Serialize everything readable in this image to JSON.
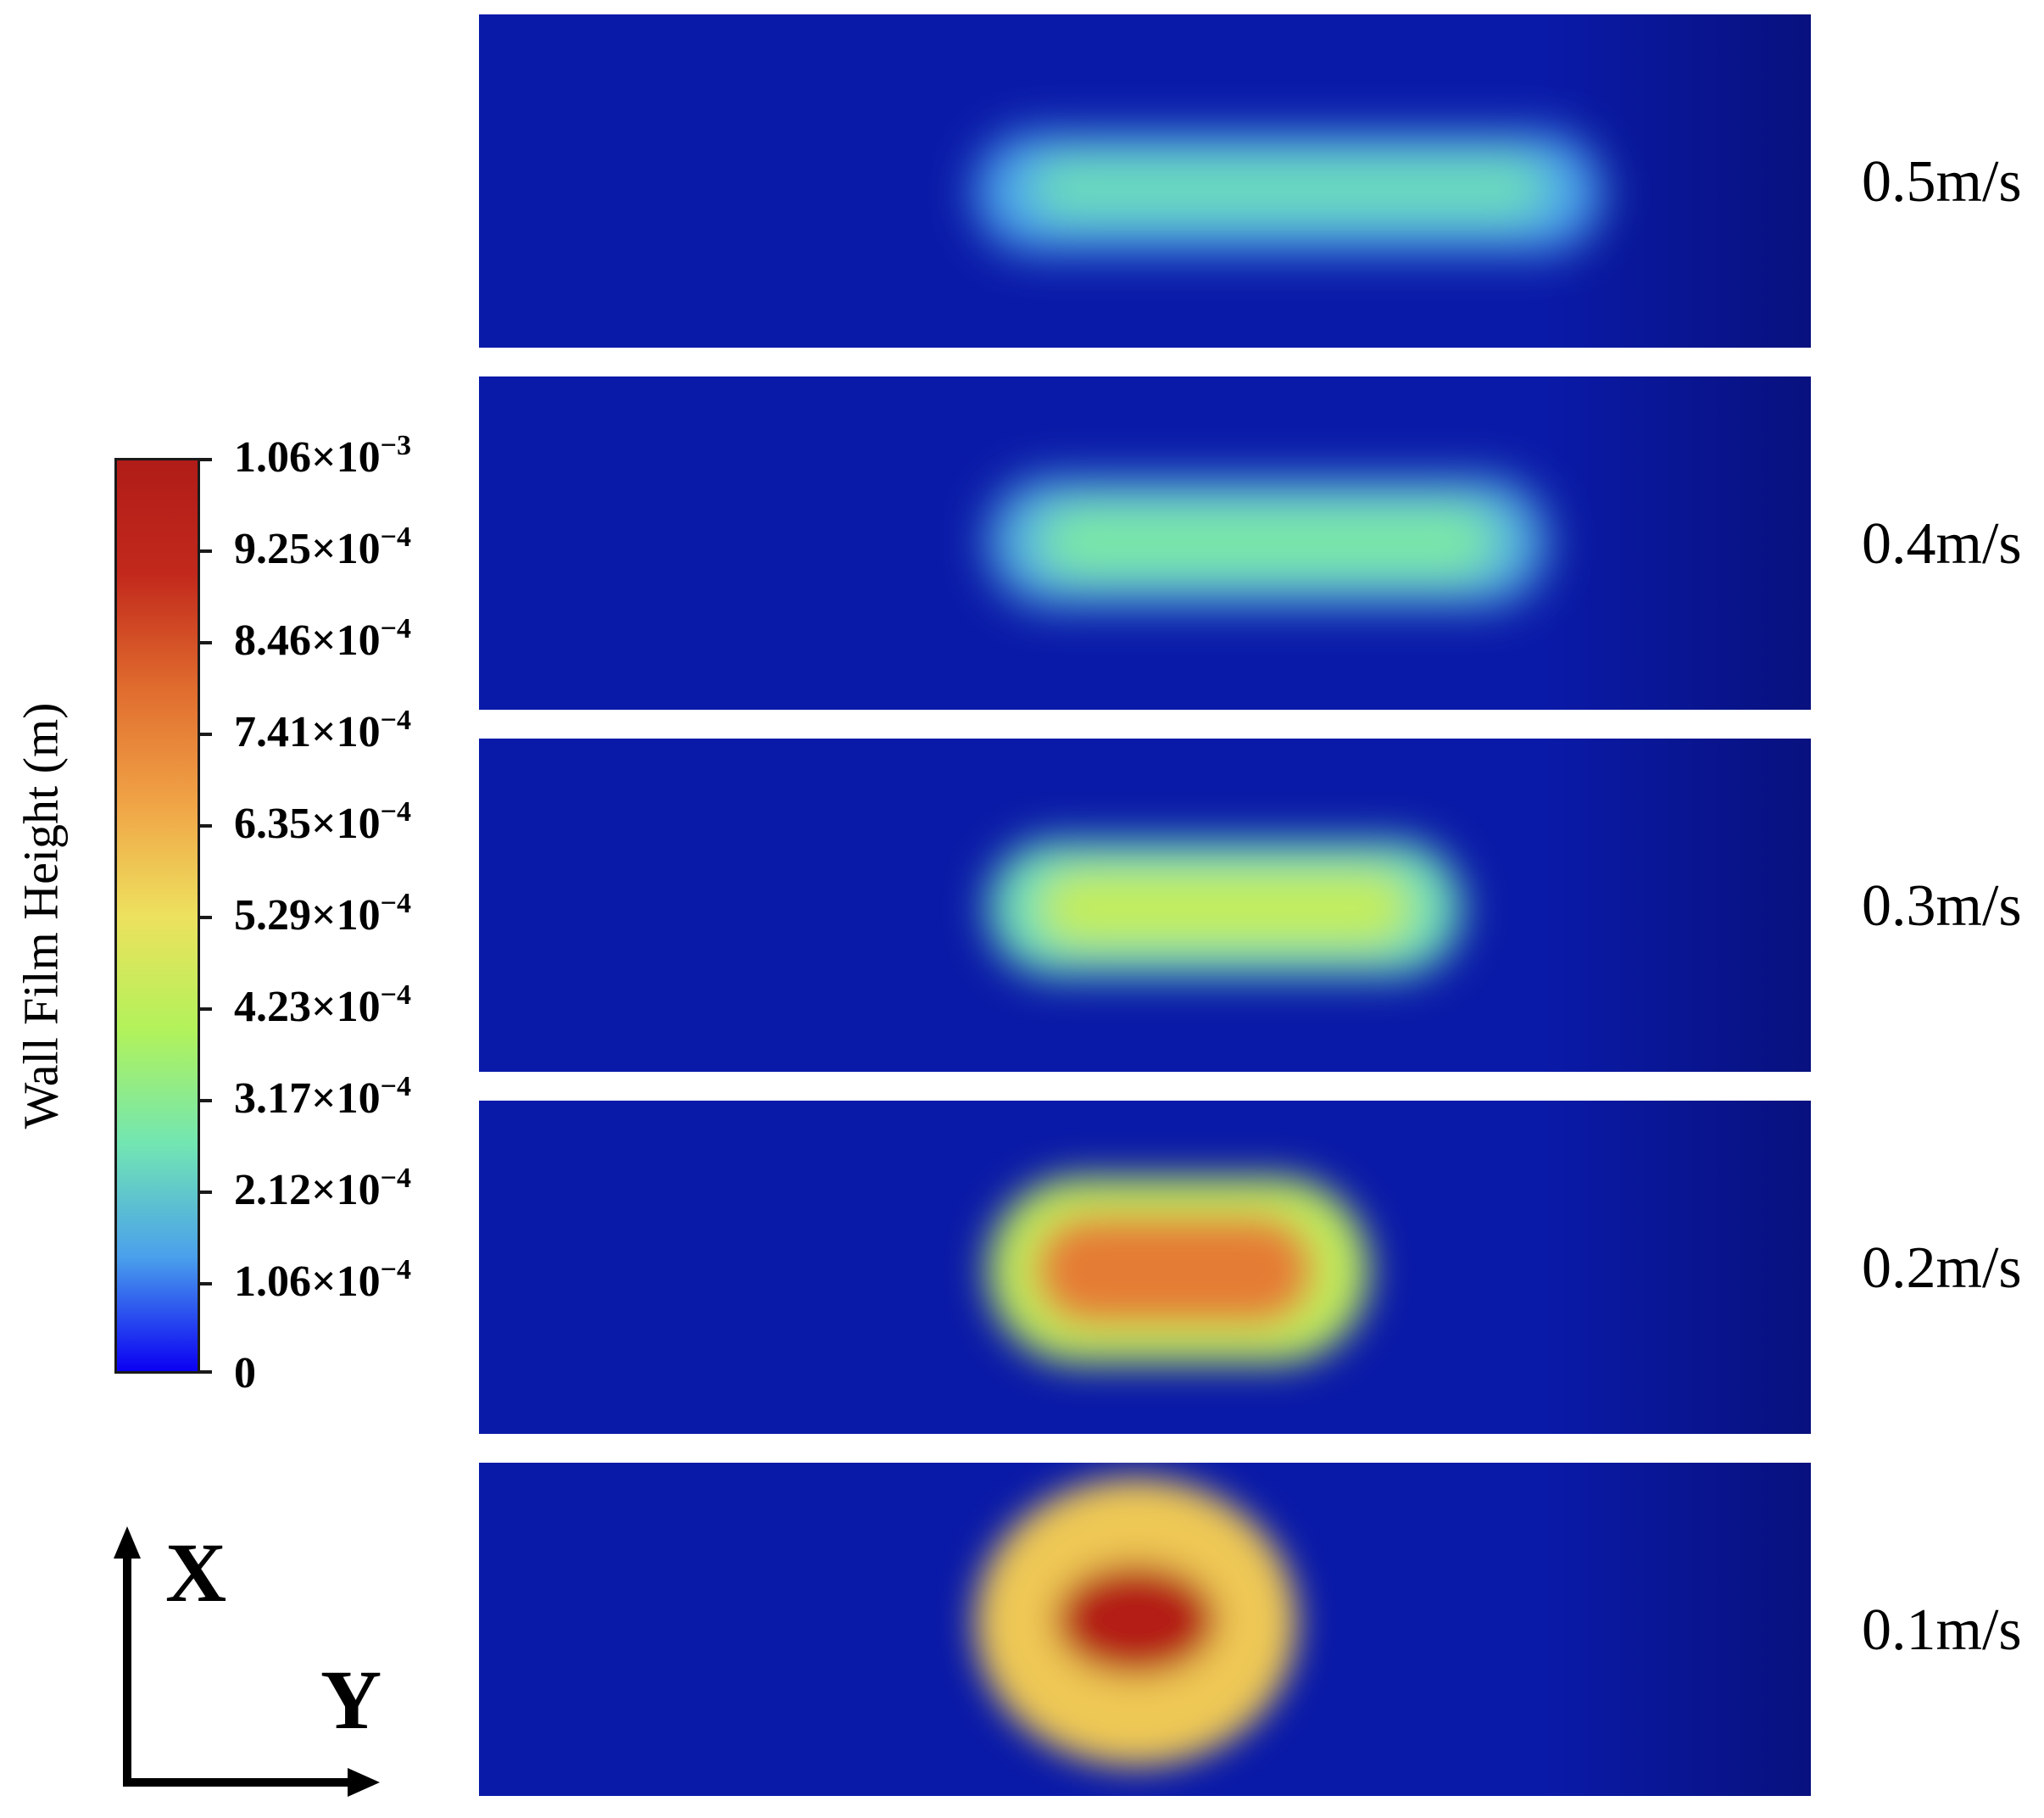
{
  "chart_data": {
    "type": "heatmap",
    "title": "",
    "colorbar": {
      "label": "Wall Film Height (m)",
      "range": [
        0,
        0.00106
      ],
      "colors": [
        "#0b00f2",
        "#4aa0ec",
        "#72e6b2",
        "#b2f25a",
        "#ede15e",
        "#f0a346",
        "#e06c2e",
        "#c2291c",
        "#b01c18"
      ],
      "ticks": [
        {
          "value": 0.00106,
          "mantissa": "1.06",
          "exponent": "−3"
        },
        {
          "value": 0.000925,
          "mantissa": "9.25",
          "exponent": "−4"
        },
        {
          "value": 0.000846,
          "mantissa": "8.46",
          "exponent": "−4"
        },
        {
          "value": 0.000741,
          "mantissa": "7.41",
          "exponent": "−4"
        },
        {
          "value": 0.000635,
          "mantissa": "6.35",
          "exponent": "−4"
        },
        {
          "value": 0.000529,
          "mantissa": "5.29",
          "exponent": "−4"
        },
        {
          "value": 0.000423,
          "mantissa": "4.23",
          "exponent": "−4"
        },
        {
          "value": 0.000317,
          "mantissa": "3.17",
          "exponent": "−4"
        },
        {
          "value": 0.000212,
          "mantissa": "2.12",
          "exponent": "−4"
        },
        {
          "value": 0.000106,
          "mantissa": "1.06",
          "exponent": "−4"
        },
        {
          "value": 0,
          "mantissa": "0",
          "exponent": ""
        }
      ]
    },
    "panels": [
      {
        "label": "0.5m/s",
        "peak_height": 0.00025
      },
      {
        "label": "0.4m/s",
        "peak_height": 0.00029
      },
      {
        "label": "0.3m/s",
        "peak_height": 0.00045
      },
      {
        "label": "0.2m/s",
        "peak_height": 0.00078
      },
      {
        "label": "0.1m/s",
        "peak_height": 0.00106
      }
    ],
    "axes": {
      "vertical": "X",
      "horizontal": "Y"
    }
  }
}
